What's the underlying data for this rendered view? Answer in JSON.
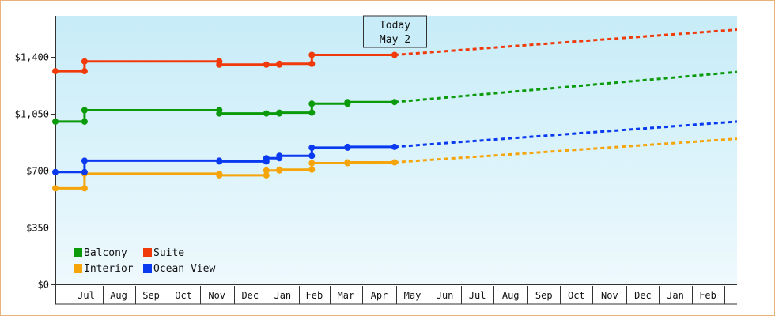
{
  "chart_data": {
    "type": "line",
    "subtype": "step",
    "y_axis": {
      "ticks": [
        0,
        350,
        700,
        1050,
        1400
      ],
      "tick_labels": [
        "$0",
        "$350",
        "$700",
        "$1,050",
        "$1,400"
      ],
      "range": [
        0,
        1650
      ]
    },
    "x_axis": {
      "range_days": [
        0,
        420
      ],
      "month_labels": [
        "Jul",
        "Aug",
        "Sep",
        "Oct",
        "Nov",
        "Dec",
        "Jan",
        "Feb",
        "Mar",
        "Apr",
        "May",
        "Jun",
        "Jul",
        "Aug",
        "Sep",
        "Oct",
        "Nov",
        "Dec",
        "Jan",
        "Feb"
      ],
      "month_starts_days": [
        9,
        29,
        49,
        69,
        89,
        110,
        130,
        150,
        169,
        189,
        210,
        230,
        250,
        270,
        291,
        311,
        331,
        352,
        372,
        392,
        412
      ]
    },
    "today": {
      "line1": "Today",
      "line2": "May 2",
      "day": 209
    },
    "legend": {
      "position": "bottom-left",
      "columns": 2
    },
    "series": [
      {
        "name": "Balcony",
        "color": "#0a9a0a",
        "observed": [
          [
            0,
            1000
          ],
          [
            18,
            1000
          ],
          [
            18,
            1070
          ],
          [
            101,
            1070
          ],
          [
            101,
            1050
          ],
          [
            130,
            1050
          ],
          [
            138,
            1050
          ],
          [
            138,
            1055
          ],
          [
            158,
            1055
          ],
          [
            158,
            1110
          ],
          [
            180,
            1110
          ],
          [
            180,
            1120
          ],
          [
            209,
            1120
          ]
        ],
        "projected": [
          [
            209,
            1120
          ],
          [
            420,
            1305
          ]
        ]
      },
      {
        "name": "Suite",
        "color": "#f03a0a",
        "observed": [
          [
            0,
            1310
          ],
          [
            18,
            1310
          ],
          [
            18,
            1370
          ],
          [
            101,
            1370
          ],
          [
            101,
            1350
          ],
          [
            130,
            1350
          ],
          [
            138,
            1350
          ],
          [
            138,
            1355
          ],
          [
            158,
            1355
          ],
          [
            158,
            1410
          ],
          [
            209,
            1410
          ]
        ],
        "projected": [
          [
            209,
            1410
          ],
          [
            420,
            1565
          ]
        ]
      },
      {
        "name": "Interior",
        "color": "#f5a50a",
        "observed": [
          [
            0,
            590
          ],
          [
            18,
            590
          ],
          [
            18,
            680
          ],
          [
            101,
            680
          ],
          [
            101,
            670
          ],
          [
            130,
            670
          ],
          [
            130,
            700
          ],
          [
            138,
            700
          ],
          [
            138,
            705
          ],
          [
            158,
            705
          ],
          [
            158,
            745
          ],
          [
            180,
            745
          ],
          [
            180,
            750
          ],
          [
            209,
            750
          ]
        ],
        "projected": [
          [
            209,
            750
          ],
          [
            420,
            895
          ]
        ]
      },
      {
        "name": "Ocean View",
        "color": "#0a3af0",
        "observed": [
          [
            0,
            690
          ],
          [
            18,
            690
          ],
          [
            18,
            760
          ],
          [
            101,
            760
          ],
          [
            101,
            755
          ],
          [
            130,
            755
          ],
          [
            130,
            775
          ],
          [
            138,
            775
          ],
          [
            138,
            790
          ],
          [
            158,
            790
          ],
          [
            158,
            840
          ],
          [
            180,
            840
          ],
          [
            180,
            845
          ],
          [
            209,
            845
          ]
        ],
        "projected": [
          [
            209,
            845
          ],
          [
            420,
            1000
          ]
        ]
      }
    ]
  }
}
